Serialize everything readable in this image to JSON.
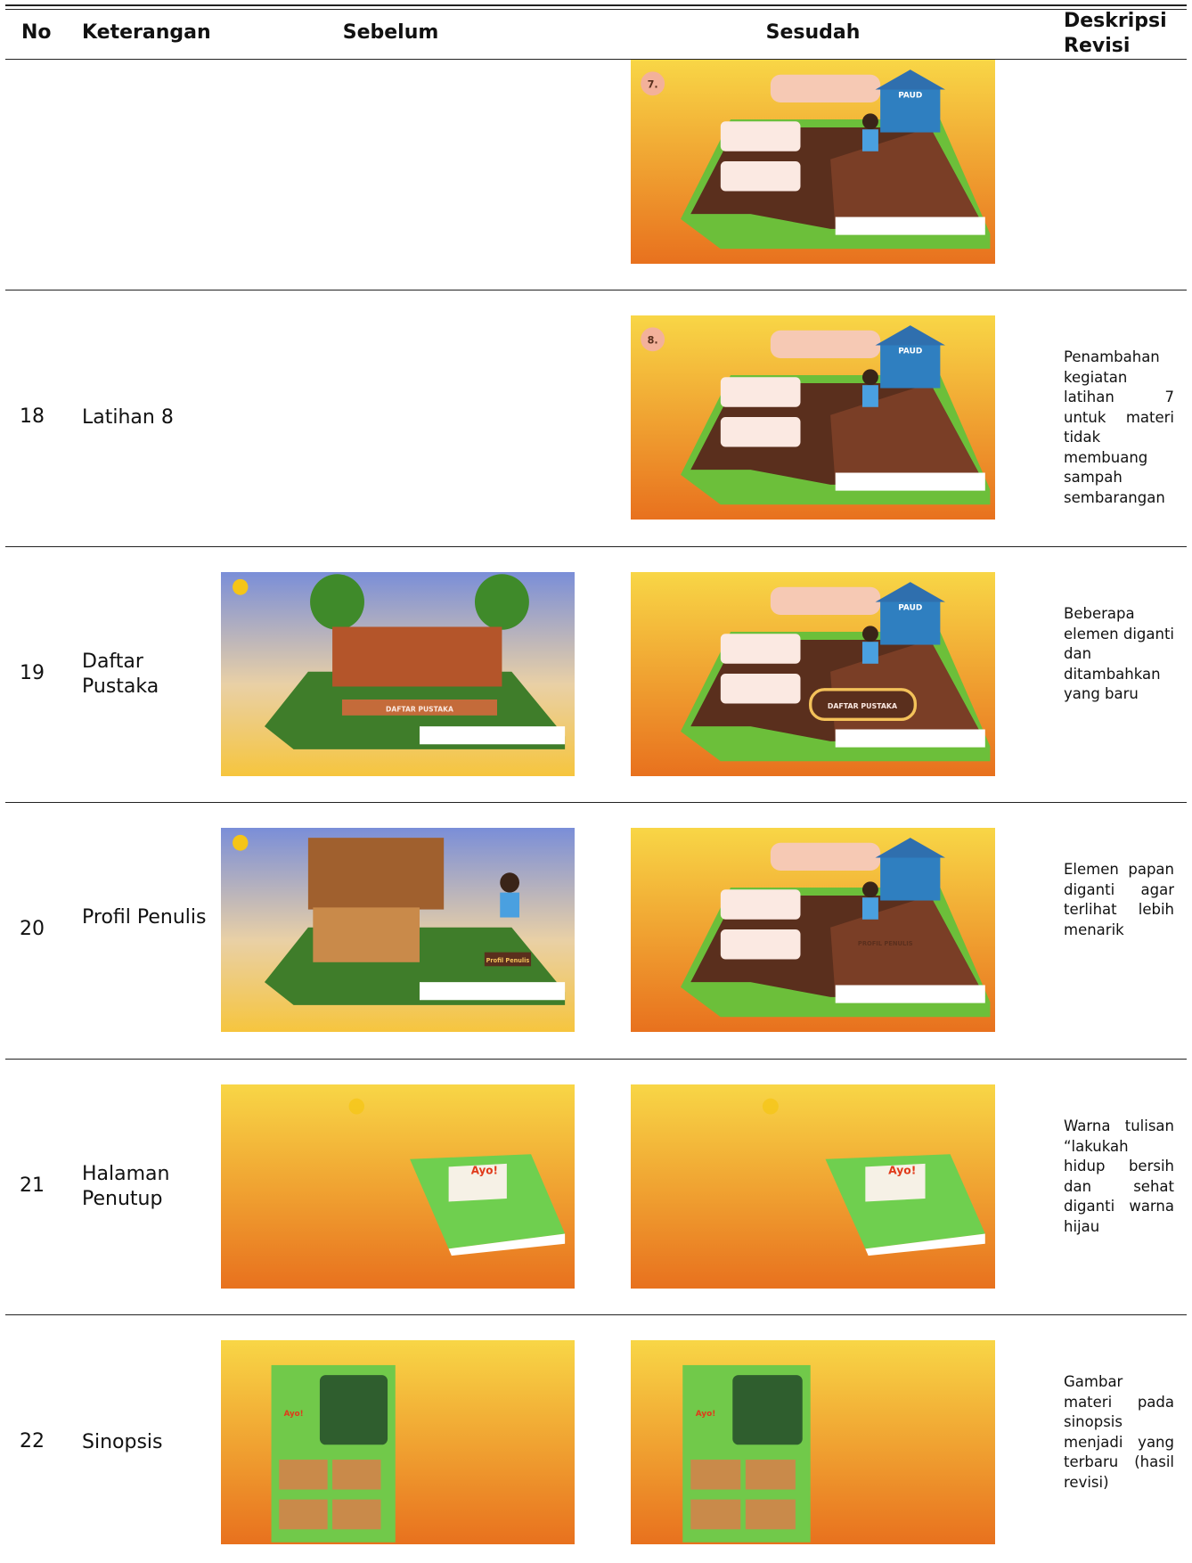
{
  "header": {
    "no": "No",
    "keterangan": "Keterangan",
    "sebelum": "Sebelum",
    "sesudah": "Sesudah",
    "deskripsi": "Deskripsi Revisi"
  },
  "rows": [
    {
      "sesudah": {
        "labels": [
          "7.",
          "PAUD"
        ]
      }
    },
    {
      "no": "18",
      "keterangan": "Latihan 8",
      "deskripsi": "Penambahan kegiatan latihan 7 untuk materi tidak membuang sampah sembarangan",
      "sesudah": {
        "labels": [
          "8.",
          "PAUD"
        ]
      }
    },
    {
      "no": "19",
      "keterangan": "Daftar Pustaka",
      "deskripsi": "Beberapa elemen diganti dan ditambahkan yang baru",
      "sebelum": {
        "labels": [
          "DAFTAR PUSTAKA"
        ]
      },
      "sesudah": {
        "labels": [
          "PAUD",
          "DAFTAR PUSTAKA"
        ]
      }
    },
    {
      "no": "20",
      "keterangan": "Profil Penulis",
      "deskripsi": "Elemen papan diganti agar terlihat lebih menarik",
      "sebelum": {
        "labels": [
          "Profil Penulis"
        ]
      },
      "sesudah": {
        "labels": [
          "PROFIL PENULIS"
        ]
      }
    },
    {
      "no": "21",
      "keterangan": "Halaman Penutup",
      "deskripsi": "Warna tulisan “lakukah hidup bersih dan sehat diganti warna hijau",
      "sebelum": {
        "labels": [
          "Ayo!"
        ]
      },
      "sesudah": {
        "labels": [
          "Ayo!"
        ]
      }
    },
    {
      "no": "22",
      "keterangan": "Sinopsis",
      "deskripsi": "Gambar materi pada sinopsis menjadi yang terbaru (hasil revisi)",
      "sebelum": {
        "labels": [
          "Ayo!"
        ]
      },
      "sesudah": {
        "labels": [
          "Ayo!"
        ]
      }
    }
  ]
}
